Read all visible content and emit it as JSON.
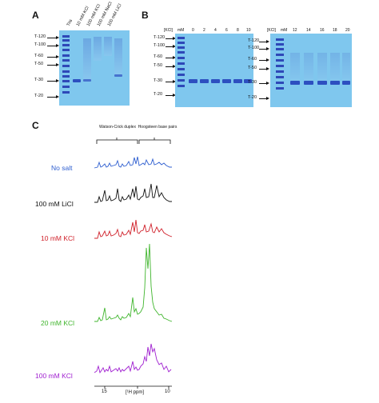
{
  "panels": {
    "a": "A",
    "b": "B",
    "c": "C"
  },
  "gel_a": {
    "lane_headers": [
      "Tris",
      "10 mM KCl",
      "100 mM KCl",
      "100 mM NaCl",
      "100 mM LiCl"
    ],
    "ladder": [
      "T-120",
      "T-100",
      "T-60",
      "T-50",
      "T-30",
      "T-20"
    ]
  },
  "gel_b1": {
    "header_kcl": "[KCl]",
    "header_mm": "mM",
    "lanes": [
      "0",
      "2",
      "4",
      "6",
      "8",
      "10"
    ],
    "ladder": [
      "T-120",
      "T-100",
      "T-60",
      "T-50",
      "T-30",
      "T-20"
    ]
  },
  "gel_b2": {
    "header_kcl": "[KCl]",
    "header_mm": "mM",
    "lanes": [
      "12",
      "14",
      "16",
      "18",
      "20"
    ],
    "ladder": [
      "T-120",
      "T-100",
      "T-60",
      "T-50",
      "T-30",
      "T-20"
    ]
  },
  "nmr": {
    "bracket_wc": "Watson-Crick duplex",
    "bracket_hg": "Hoogsteen base pairs",
    "traces": [
      {
        "label": "No salt",
        "color": "#2f5fd0"
      },
      {
        "label": "100 mM LiCl",
        "color": "#111111"
      },
      {
        "label": "10 mM KCl",
        "color": "#d0202a"
      },
      {
        "label": "20 mM KCl",
        "color": "#3fb52c"
      },
      {
        "label": "100 mM KCl",
        "color": "#a020d0"
      }
    ],
    "x_ticks": [
      "15",
      "10"
    ],
    "x_label": "[¹H ppm]"
  }
}
